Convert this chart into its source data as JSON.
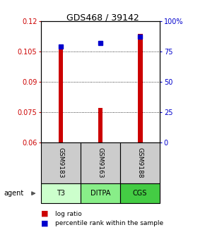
{
  "title": "GDS468 / 39142",
  "categories": [
    "GSM9183",
    "GSM9163",
    "GSM9188"
  ],
  "agents": [
    "T3",
    "DITPA",
    "CGS"
  ],
  "log_ratio": [
    0.1062,
    0.077,
    0.1138
  ],
  "percentile_rank": [
    79.0,
    82.0,
    87.5
  ],
  "ylim_left": [
    0.06,
    0.12
  ],
  "ylim_right": [
    0,
    100
  ],
  "yticks_left": [
    0.06,
    0.075,
    0.09,
    0.105,
    0.12
  ],
  "yticks_right": [
    0,
    25,
    50,
    75,
    100
  ],
  "ytick_labels_left": [
    "0.06",
    "0.075",
    "0.09",
    "0.105",
    "0.12"
  ],
  "ytick_labels_right": [
    "0",
    "25",
    "50",
    "75",
    "100%"
  ],
  "bar_color": "#cc0000",
  "point_color": "#0000cc",
  "agent_colors": [
    "#ccffcc",
    "#88ee88",
    "#44cc44"
  ],
  "sample_bg_color": "#cccccc",
  "title_color": "#000000",
  "left_axis_color": "#cc0000",
  "right_axis_color": "#0000cc",
  "legend_bar_label": "log ratio",
  "legend_point_label": "percentile rank within the sample",
  "bar_width": 0.12
}
